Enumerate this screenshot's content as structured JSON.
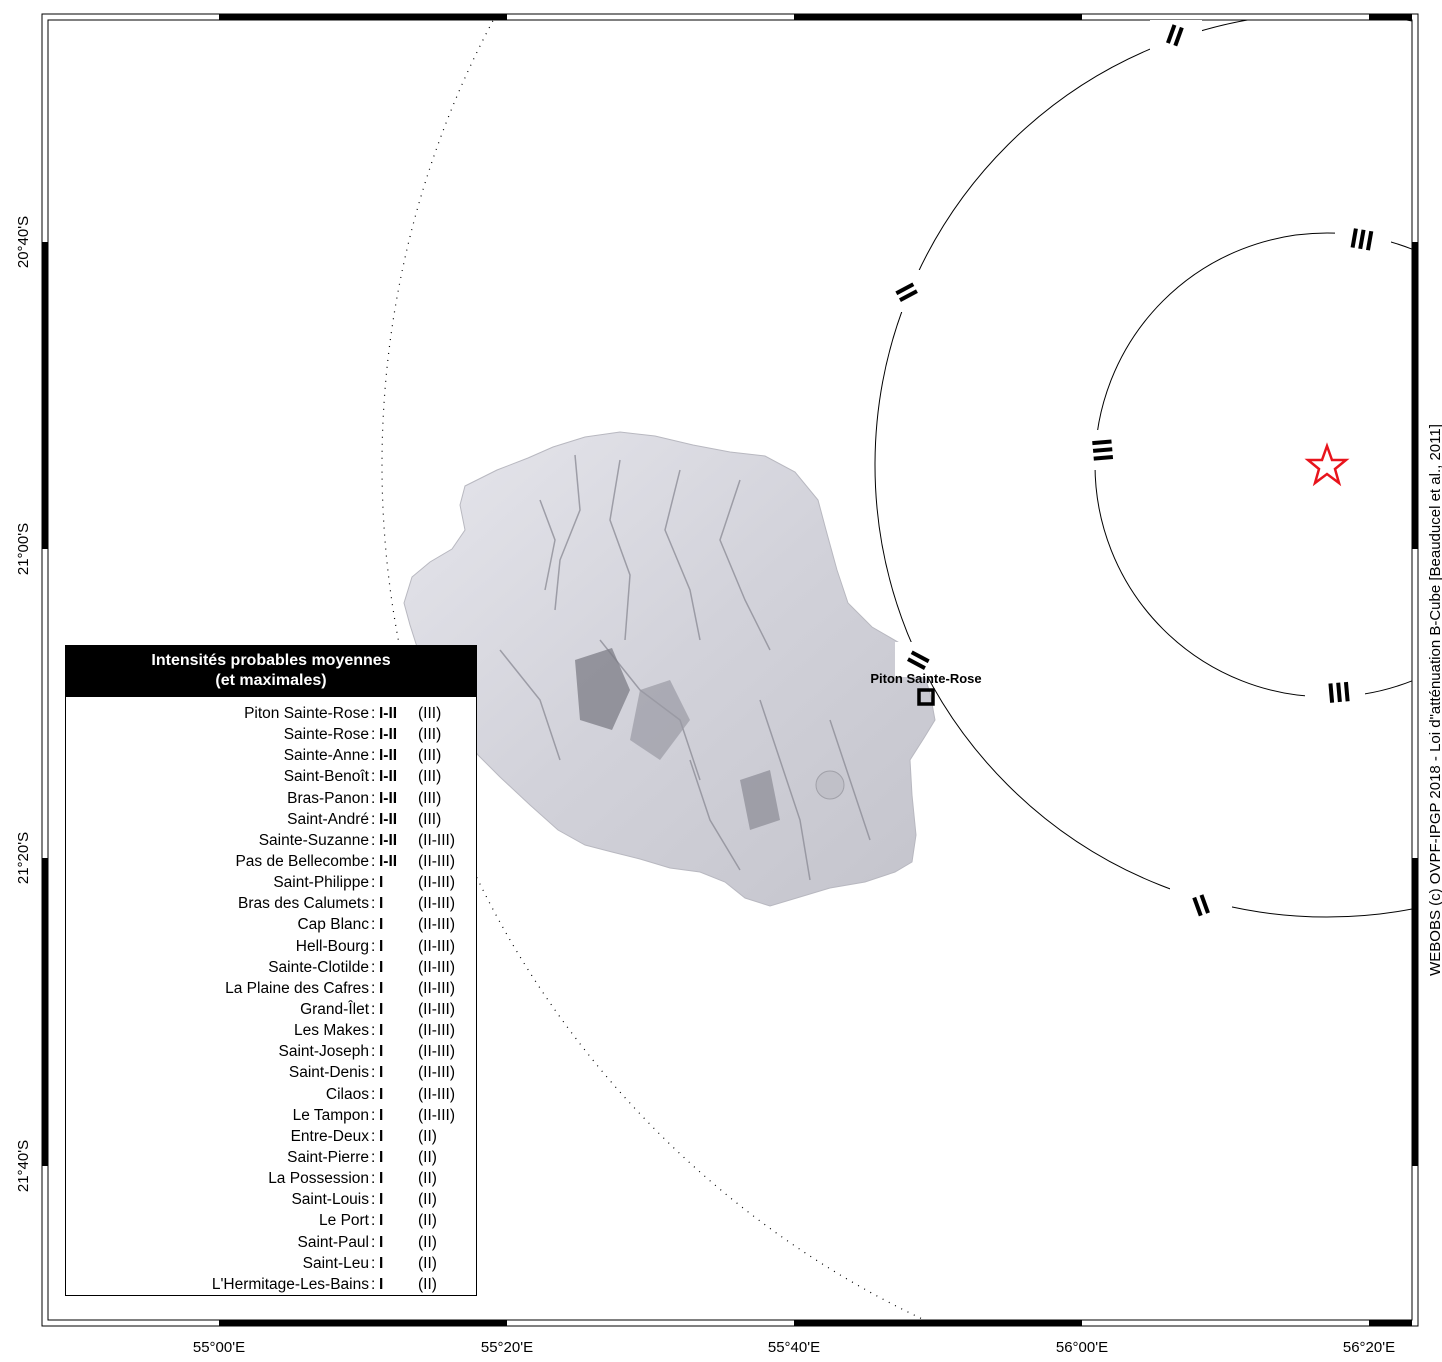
{
  "map": {
    "x_ticks": [
      "55°00'E",
      "55°20'E",
      "55°40'E",
      "56°00'E",
      "56°20'E"
    ],
    "y_ticks": [
      "20°40'S",
      "21°00'S",
      "21°20'S",
      "21°40'S"
    ],
    "station_label": "Piton Sainte-Rose",
    "isoseismal_labels": [
      "II",
      "II",
      "II",
      "II",
      "III",
      "III",
      "III"
    ],
    "credit": "WEBOBS (c) OVPF-IPGP 2018 - Loi d\"atténuation B-Cube [Beauducel et al., 2011]",
    "epicenter_color": "#e8141c",
    "land_color": "#d4d4dc"
  },
  "legend": {
    "title_line1": "Intensités probables moyennes",
    "title_line2": "(et maximales)",
    "separator": ":",
    "rows": [
      {
        "place": "Piton Sainte-Rose",
        "mean": "I-II",
        "max": "(III)"
      },
      {
        "place": "Sainte-Rose",
        "mean": "I-II",
        "max": "(III)"
      },
      {
        "place": "Sainte-Anne",
        "mean": "I-II",
        "max": "(III)"
      },
      {
        "place": "Saint-Benoît",
        "mean": "I-II",
        "max": "(III)"
      },
      {
        "place": "Bras-Panon",
        "mean": "I-II",
        "max": "(III)"
      },
      {
        "place": "Saint-André",
        "mean": "I-II",
        "max": "(III)"
      },
      {
        "place": "Sainte-Suzanne",
        "mean": "I-II",
        "max": "(II-III)"
      },
      {
        "place": "Pas de Bellecombe",
        "mean": "I-II",
        "max": "(II-III)"
      },
      {
        "place": "Saint-Philippe",
        "mean": "I",
        "max": "(II-III)"
      },
      {
        "place": "Bras des Calumets",
        "mean": "I",
        "max": "(II-III)"
      },
      {
        "place": "Cap Blanc",
        "mean": "I",
        "max": "(II-III)"
      },
      {
        "place": "Hell-Bourg",
        "mean": "I",
        "max": "(II-III)"
      },
      {
        "place": "Sainte-Clotilde",
        "mean": "I",
        "max": "(II-III)"
      },
      {
        "place": "La Plaine des Cafres",
        "mean": "I",
        "max": "(II-III)"
      },
      {
        "place": "Grand-Îlet",
        "mean": "I",
        "max": "(II-III)"
      },
      {
        "place": "Les Makes",
        "mean": "I",
        "max": "(II-III)"
      },
      {
        "place": "Saint-Joseph",
        "mean": "I",
        "max": "(II-III)"
      },
      {
        "place": "Saint-Denis",
        "mean": "I",
        "max": "(II-III)"
      },
      {
        "place": "Cilaos",
        "mean": "I",
        "max": "(II-III)"
      },
      {
        "place": "Le Tampon",
        "mean": "I",
        "max": "(II-III)"
      },
      {
        "place": "Entre-Deux",
        "mean": "I",
        "max": "(II)"
      },
      {
        "place": "Saint-Pierre",
        "mean": "I",
        "max": "(II)"
      },
      {
        "place": "La Possession",
        "mean": "I",
        "max": "(II)"
      },
      {
        "place": "Saint-Louis",
        "mean": "I",
        "max": "(II)"
      },
      {
        "place": "Le Port",
        "mean": "I",
        "max": "(II)"
      },
      {
        "place": "Saint-Paul",
        "mean": "I",
        "max": "(II)"
      },
      {
        "place": "Saint-Leu",
        "mean": "I",
        "max": "(II)"
      },
      {
        "place": "L'Hermitage-Les-Bains",
        "mean": "I",
        "max": "(II)"
      }
    ]
  }
}
